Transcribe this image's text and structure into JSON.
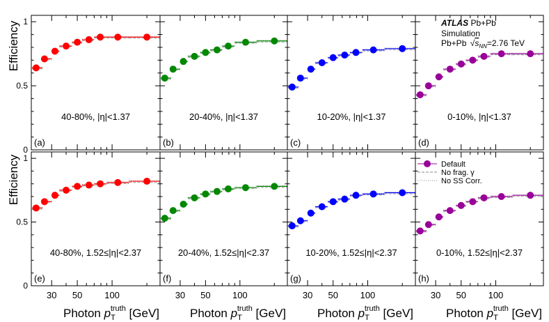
{
  "chart_data": {
    "type": "scatter",
    "title": "ATLAS Pb+Pb Simulation",
    "xlabel": "Photon p_T^truth [GeV]",
    "ylabel": "Efficiency",
    "x_scale": "log",
    "xlim": [
      20,
      260
    ],
    "ylim": [
      0,
      1.05
    ],
    "x_ticks": [
      30,
      50,
      100
    ],
    "y_ticks": [
      0,
      0.5,
      1
    ],
    "x_tick_labels": [
      "30",
      "50",
      "100"
    ],
    "y_tick_labels": [
      "0",
      "0.5",
      "1"
    ],
    "x_points": [
      22,
      26,
      32,
      40,
      50,
      63,
      79,
      112,
      200
    ],
    "bin_edges": [
      20,
      25,
      30,
      35,
      45,
      55,
      70,
      90,
      140,
      260
    ],
    "colors": {
      "40-80%": "#ff0000",
      "20-40%": "#008800",
      "10-20%": "#0000ff",
      "0-10%": "#990099",
      "default_legend": "#990099",
      "line": "#999999"
    },
    "annotations": {
      "experiment": "ATLAS",
      "system": "Pb+Pb",
      "sim": "Simulation",
      "energy_pre": "Pb+Pb",
      "energy_post": "=2.76 TeV"
    },
    "legend": {
      "position": "top-right",
      "entries": [
        "Default",
        "No frag. γ",
        "No SS Corr."
      ]
    },
    "panels": [
      {
        "label": "(a)",
        "centrality": "40-80%",
        "eta": "|η|<1.37",
        "text": "40-80%, |η|<1.37",
        "values": [
          0.64,
          0.71,
          0.77,
          0.81,
          0.84,
          0.86,
          0.88,
          0.88,
          0.88
        ]
      },
      {
        "label": "(b)",
        "centrality": "20-40%",
        "eta": "|η|<1.37",
        "text": "20-40%, |η|<1.37",
        "values": [
          0.56,
          0.63,
          0.69,
          0.73,
          0.76,
          0.78,
          0.81,
          0.84,
          0.85
        ]
      },
      {
        "label": "(c)",
        "centrality": "10-20%",
        "eta": "|η|<1.37",
        "text": "10-20%, |η|<1.37",
        "values": [
          0.49,
          0.56,
          0.63,
          0.68,
          0.72,
          0.74,
          0.76,
          0.78,
          0.79
        ]
      },
      {
        "label": "(d)",
        "centrality": "0-10%",
        "eta": "|η|<1.37",
        "text": "0-10%, |η|<1.37",
        "values": [
          0.43,
          0.5,
          0.57,
          0.63,
          0.67,
          0.7,
          0.73,
          0.75,
          0.75
        ]
      },
      {
        "label": "(e)",
        "centrality": "40-80%",
        "eta": "1.52≤|η|<2.37",
        "text": "40-80%, 1.52≤|η|<2.37",
        "values": [
          0.61,
          0.66,
          0.71,
          0.75,
          0.78,
          0.79,
          0.8,
          0.81,
          0.82
        ]
      },
      {
        "label": "(f)",
        "centrality": "20-40%",
        "eta": "1.52≤|η|<2.37",
        "text": "20-40%, 1.52≤|η|<2.37",
        "values": [
          0.53,
          0.59,
          0.64,
          0.69,
          0.72,
          0.74,
          0.76,
          0.77,
          0.78
        ]
      },
      {
        "label": "(g)",
        "centrality": "10-20%",
        "eta": "1.52≤|η|<2.37",
        "text": "10-20%, 1.52≤|η|<2.37",
        "values": [
          0.47,
          0.51,
          0.57,
          0.62,
          0.66,
          0.68,
          0.71,
          0.72,
          0.73
        ]
      },
      {
        "label": "(h)",
        "centrality": "0-10%",
        "eta": "1.52≤|η|<2.37",
        "text": "0-10%, 1.52≤|η|<2.37",
        "values": [
          0.43,
          0.48,
          0.54,
          0.59,
          0.63,
          0.66,
          0.69,
          0.7,
          0.71
        ]
      }
    ]
  }
}
